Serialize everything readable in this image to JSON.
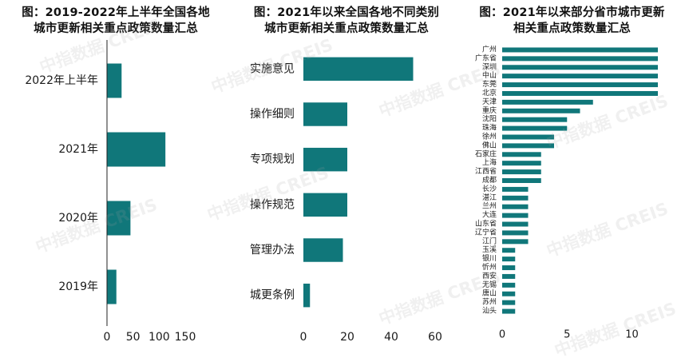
{
  "colors": {
    "bar": "#10777a",
    "text": "#1a1a1a",
    "axis": "#222222"
  },
  "watermark": "中指数据 CREIS",
  "chart_data": [
    {
      "type": "bar",
      "orientation": "horizontal",
      "title": "图：2019-2022年上半年全国各地城市更新相关重点政策数量汇总",
      "title_lines": [
        "图：2019-2022年上半年全国各地",
        "城市更新相关重点政策数量汇总"
      ],
      "categories": [
        "2022年上半年",
        "2021年",
        "2020年",
        "2019年"
      ],
      "values": [
        28,
        112,
        45,
        18
      ],
      "xlim": [
        0,
        150
      ],
      "xticks": [
        0,
        50,
        100,
        150
      ],
      "grid": false
    },
    {
      "type": "bar",
      "orientation": "horizontal",
      "title": "图：2021年以来全国各地不同类别城市更新相关重点政策数量汇总",
      "title_lines": [
        "图：2021年以来全国各地不同类别",
        "城市更新相关重点政策数量汇总"
      ],
      "categories": [
        "实施意见",
        "操作细则",
        "专项规划",
        "操作规范",
        "管理办法",
        "城更条例"
      ],
      "values": [
        50,
        20,
        20,
        20,
        18,
        3
      ],
      "xlim": [
        0,
        60
      ],
      "xticks": [
        0,
        20,
        40,
        60
      ],
      "grid": false
    },
    {
      "type": "bar",
      "orientation": "horizontal",
      "title": "图：2021年以来部分省市城市更新相关重点政策数量汇总",
      "title_lines": [
        "图：2021年以来部分省市城市更新",
        "相关重点政策数量汇总"
      ],
      "categories": [
        "广州",
        "广东省",
        "深圳",
        "中山",
        "东莞",
        "北京",
        "天津",
        "重庆",
        "沈阳",
        "珠海",
        "徐州",
        "佛山",
        "石家庄",
        "上海",
        "江西省",
        "成都",
        "长沙",
        "湛江",
        "兰州",
        "大连",
        "山东省",
        "辽宁省",
        "江门",
        "玉溪",
        "银川",
        "忻州",
        "西安",
        "无锡",
        "唐山",
        "苏州",
        "汕头"
      ],
      "values": [
        12,
        12,
        12,
        12,
        12,
        12,
        7,
        6,
        5,
        5,
        4,
        4,
        3,
        3,
        3,
        3,
        2,
        2,
        2,
        2,
        2,
        2,
        2,
        1,
        1,
        1,
        1,
        1,
        1,
        1,
        1
      ],
      "xlim": [
        0,
        12
      ],
      "xticks": [
        0,
        5,
        10
      ],
      "grid": false
    }
  ]
}
